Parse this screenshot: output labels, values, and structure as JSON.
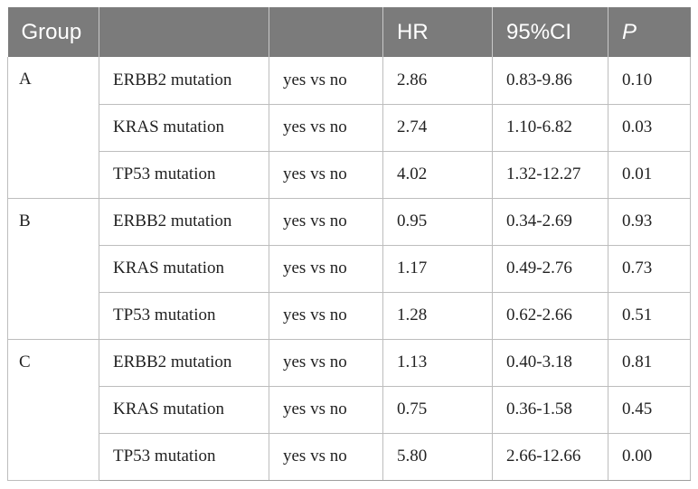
{
  "table": {
    "headers": [
      {
        "label": "Group",
        "italic": false
      },
      {
        "label": "",
        "italic": false
      },
      {
        "label": "",
        "italic": false
      },
      {
        "label": "HR",
        "italic": false
      },
      {
        "label": "95%CI",
        "italic": false
      },
      {
        "label": "P",
        "italic": true
      }
    ],
    "groups": [
      {
        "name": "A",
        "rows": [
          {
            "variable": "ERBB2 mutation",
            "comparison": "yes vs no",
            "hr": "2.86",
            "ci": "0.83-9.86",
            "p": "0.10"
          },
          {
            "variable": "KRAS mutation",
            "comparison": "yes vs no",
            "hr": "2.74",
            "ci": "1.10-6.82",
            "p": "0.03"
          },
          {
            "variable": "TP53 mutation",
            "comparison": "yes vs no",
            "hr": "4.02",
            "ci": "1.32-12.27",
            "p": "0.01"
          }
        ]
      },
      {
        "name": "B",
        "rows": [
          {
            "variable": "ERBB2 mutation",
            "comparison": "yes vs no",
            "hr": "0.95",
            "ci": "0.34-2.69",
            "p": "0.93"
          },
          {
            "variable": "KRAS mutation",
            "comparison": "yes vs no",
            "hr": "1.17",
            "ci": "0.49-2.76",
            "p": "0.73"
          },
          {
            "variable": "TP53 mutation",
            "comparison": "yes vs no",
            "hr": "1.28",
            "ci": "0.62-2.66",
            "p": "0.51"
          }
        ]
      },
      {
        "name": "C",
        "rows": [
          {
            "variable": "ERBB2 mutation",
            "comparison": "yes vs no",
            "hr": "1.13",
            "ci": "0.40-3.18",
            "p": "0.81"
          },
          {
            "variable": "KRAS mutation",
            "comparison": "yes vs no",
            "hr": "0.75",
            "ci": "0.36-1.58",
            "p": "0.45"
          },
          {
            "variable": "TP53 mutation",
            "comparison": "yes vs no",
            "hr": "5.80",
            "ci": "2.66-12.66",
            "p": "0.00"
          }
        ]
      }
    ]
  },
  "colors": {
    "header_bg": "#7b7b7b",
    "header_text": "#ffffff",
    "border": "#bdbdbd"
  }
}
